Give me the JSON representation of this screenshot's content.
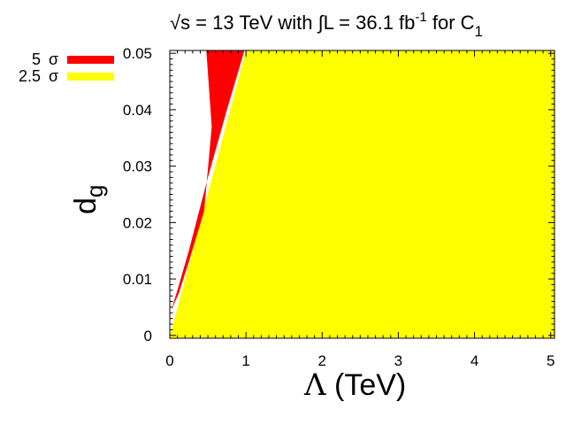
{
  "chart_data": {
    "type": "area",
    "title": {
      "main": "√s = 13 TeV with ∫L = 36.1 fb",
      "exp": "-1",
      "mid": " for C",
      "sub": "1"
    },
    "xlabel": {
      "symbol": "Λ",
      "rest": " (TeV)"
    },
    "ylabel": {
      "base": "d",
      "sub": "g"
    },
    "xlim": [
      0,
      5.05
    ],
    "ylim": [
      -0.0005,
      0.0505
    ],
    "x_ticks": [
      "0",
      "1",
      "2",
      "3",
      "4",
      "5"
    ],
    "x_tick_values": [
      0,
      1,
      2,
      3,
      4,
      5
    ],
    "y_ticks": [
      "0",
      "0.01",
      "0.02",
      "0.03",
      "0.04",
      "0.05"
    ],
    "y_tick_values": [
      0,
      0.01,
      0.02,
      0.03,
      0.04,
      0.05
    ],
    "series": [
      {
        "name": "2.5 σ",
        "color": "#ffff00",
        "boundary": [
          [
            0.0,
            0.0
          ],
          [
            0.02,
            0.0008
          ],
          [
            1.0,
            0.0505
          ],
          [
            5.05,
            0.0505
          ],
          [
            5.05,
            -0.0005
          ],
          [
            0.0,
            -0.0005
          ]
        ]
      },
      {
        "name": "5 σ",
        "color": "#ff0000",
        "boundary": [
          [
            0.02,
            0.0045
          ],
          [
            0.12,
            0.0075
          ],
          [
            0.25,
            0.013
          ],
          [
            0.45,
            0.022
          ],
          [
            0.55,
            0.037
          ],
          [
            0.48,
            0.0505
          ],
          [
            0.98,
            0.0505
          ],
          [
            0.75,
            0.04
          ],
          [
            0.5,
            0.028
          ],
          [
            0.25,
            0.015
          ],
          [
            0.1,
            0.008
          ]
        ]
      }
    ],
    "legend": {
      "placement": "top-left",
      "items": [
        {
          "sigma_value": "5",
          "sigma_symbol": "σ",
          "color": "#ff0000"
        },
        {
          "sigma_value": "2.5",
          "sigma_symbol": "σ",
          "color": "#ffff00"
        }
      ]
    },
    "grid": false
  }
}
